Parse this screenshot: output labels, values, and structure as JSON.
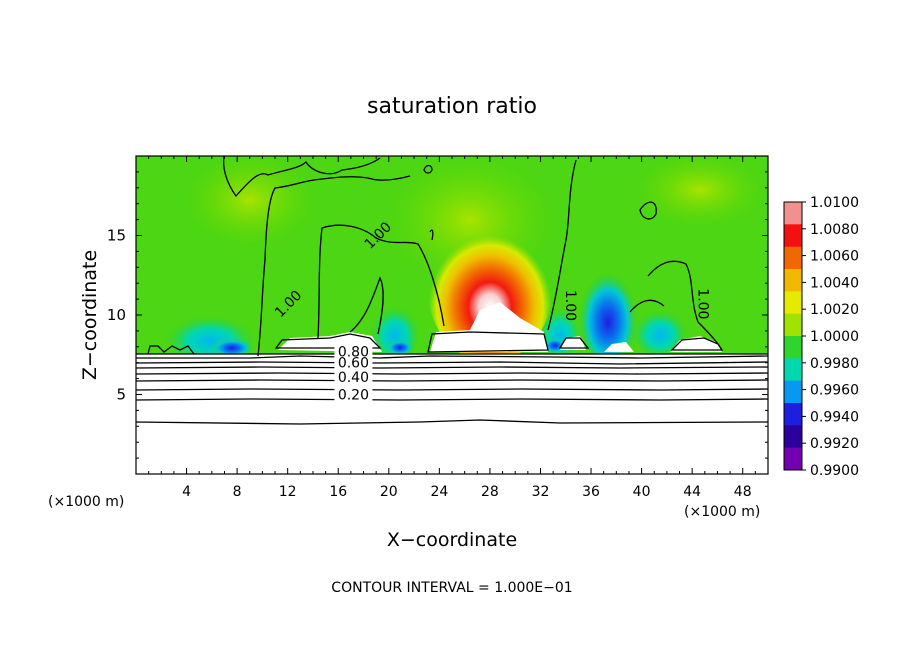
{
  "chart_data": {
    "type": "heatmap",
    "title": "saturation ratio",
    "xlabel": "X−coordinate",
    "ylabel": "Z−coordinate",
    "x_unit_left": "(×1000 m)",
    "x_unit_right": "(×1000 m)",
    "xlim": [
      0,
      50
    ],
    "ylim": [
      0,
      20
    ],
    "x_ticks": [
      4,
      8,
      12,
      16,
      20,
      24,
      28,
      32,
      36,
      40,
      44,
      48
    ],
    "y_ticks": [
      5,
      10,
      15
    ],
    "footer": "CONTOUR INTERVAL = 1.000E−01",
    "contour_labels": [
      {
        "text": "1.00",
        "x": 19.4,
        "z": 14.8
      },
      {
        "text": "1.00",
        "x": 12.3,
        "z": 10.5
      },
      {
        "text": "1.00",
        "x": 34.0,
        "z": 10.6
      },
      {
        "text": "1.00",
        "x": 44.5,
        "z": 10.7
      },
      {
        "text": "0.80",
        "x": 17.2,
        "z": 7.4
      },
      {
        "text": "0.60",
        "x": 17.2,
        "z": 6.7
      },
      {
        "text": "0.40",
        "x": 17.2,
        "z": 5.8
      },
      {
        "text": "0.20",
        "x": 17.2,
        "z": 4.7
      }
    ],
    "colorbar": {
      "labels": [
        "1.0100",
        "1.0080",
        "1.0060",
        "1.0040",
        "1.0020",
        "1.0000",
        "0.9980",
        "0.9960",
        "0.9940",
        "0.9920",
        "0.9900"
      ],
      "colors": [
        "#f29090",
        "#f21010",
        "#f06800",
        "#f0b800",
        "#e6ea00",
        "#9fe400",
        "#2fd42f",
        "#00d8b0",
        "#0898f0",
        "#1d1ee0",
        "#2c009c",
        "#7300b0"
      ]
    }
  }
}
